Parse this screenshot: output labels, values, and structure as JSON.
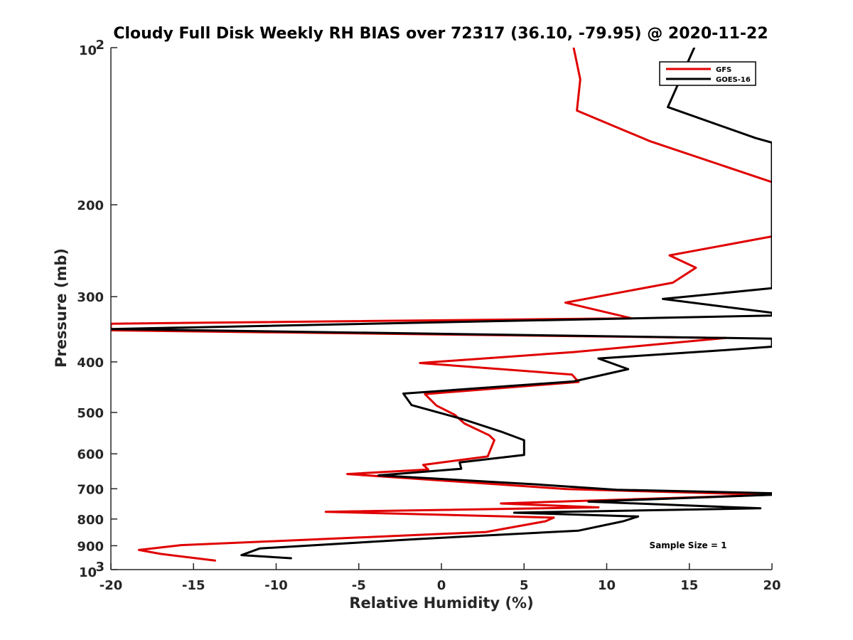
{
  "chart_data": {
    "type": "line",
    "title": "Cloudy Full Disk Weekly RH BIAS over 72317 (36.10, -79.95) @ 2020-11-22",
    "xlabel": "Relative Humidity (%)",
    "ylabel": "Pressure (mb)",
    "xlim": [
      -20,
      20
    ],
    "ylim": [
      1000,
      100
    ],
    "yscale": "log",
    "y_reversed": true,
    "grid": false,
    "legend_position": "top-right",
    "x_ticks": [
      "-20",
      "-15",
      "-10",
      "-5",
      "0",
      "5",
      "10",
      "15",
      "20"
    ],
    "y_ticks": [
      {
        "value": 100,
        "base": "10",
        "exp": "2"
      },
      {
        "value": 200,
        "label": "200"
      },
      {
        "value": 300,
        "label": "300"
      },
      {
        "value": 400,
        "label": "400"
      },
      {
        "value": 500,
        "label": "500"
      },
      {
        "value": 600,
        "label": "600"
      },
      {
        "value": 700,
        "label": "700"
      },
      {
        "value": 800,
        "label": "800"
      },
      {
        "value": 900,
        "label": "900"
      },
      {
        "value": 1000,
        "base": "10",
        "exp": "3"
      }
    ],
    "series": [
      {
        "name": "GFS",
        "color": "#e00000",
        "points": [
          [
            8.0,
            100
          ],
          [
            8.4,
            115
          ],
          [
            8.2,
            132
          ],
          [
            12.6,
            151
          ],
          [
            20,
            181
          ],
          [
            20,
            230
          ],
          [
            13.8,
            250
          ],
          [
            15.4,
            264
          ],
          [
            14.0,
            282
          ],
          [
            7.5,
            308
          ],
          [
            11.5,
            330
          ],
          [
            -20,
            338
          ],
          [
            -20,
            348
          ],
          [
            17.2,
            360
          ],
          [
            8.0,
            383
          ],
          [
            -1.3,
            402
          ],
          [
            7.9,
            423
          ],
          [
            8.3,
            437
          ],
          [
            -1.0,
            461
          ],
          [
            -0.3,
            485
          ],
          [
            0.8,
            505
          ],
          [
            1.4,
            525
          ],
          [
            2.9,
            553
          ],
          [
            3.2,
            565
          ],
          [
            2.8,
            607
          ],
          [
            -1.1,
            630
          ],
          [
            -0.8,
            643
          ],
          [
            -5.7,
            656
          ],
          [
            7.6,
            701
          ],
          [
            20,
            719
          ],
          [
            3.6,
            747
          ],
          [
            9.5,
            760
          ],
          [
            -7.0,
            775
          ],
          [
            6.8,
            795
          ],
          [
            6.3,
            808
          ],
          [
            2.7,
            847
          ],
          [
            -15.8,
            898
          ],
          [
            -18.3,
            917
          ],
          [
            -17.0,
            933
          ],
          [
            -13.7,
            961
          ]
        ]
      },
      {
        "name": "GOES-16",
        "color": "#000000",
        "points": [
          [
            15.3,
            100
          ],
          [
            13.7,
            130
          ],
          [
            19.0,
            149
          ],
          [
            20,
            152
          ],
          [
            20,
            289
          ],
          [
            13.4,
            303
          ],
          [
            20,
            322
          ],
          [
            20,
            326
          ],
          [
            -20,
            346
          ],
          [
            20,
            361
          ],
          [
            20,
            374
          ],
          [
            16.5,
            381
          ],
          [
            9.5,
            394
          ],
          [
            11.3,
            413
          ],
          [
            8.0,
            436
          ],
          [
            -2.3,
            460
          ],
          [
            -1.8,
            484
          ],
          [
            1.3,
            515
          ],
          [
            3.6,
            544
          ],
          [
            5.0,
            565
          ],
          [
            5.0,
            603
          ],
          [
            1.1,
            623
          ],
          [
            1.2,
            641
          ],
          [
            -3.8,
            660
          ],
          [
            5.8,
            687
          ],
          [
            10.6,
            703
          ],
          [
            20,
            714
          ],
          [
            20,
            719
          ],
          [
            8.9,
            741
          ],
          [
            19.3,
            763
          ],
          [
            4.4,
            778
          ],
          [
            11.9,
            791
          ],
          [
            11.0,
            808
          ],
          [
            8.3,
            842
          ],
          [
            -1.5,
            874
          ],
          [
            -11.0,
            911
          ],
          [
            -12.1,
            938
          ],
          [
            -9.1,
            951
          ]
        ]
      }
    ],
    "annotations": [
      "Sample Size = 1"
    ]
  }
}
